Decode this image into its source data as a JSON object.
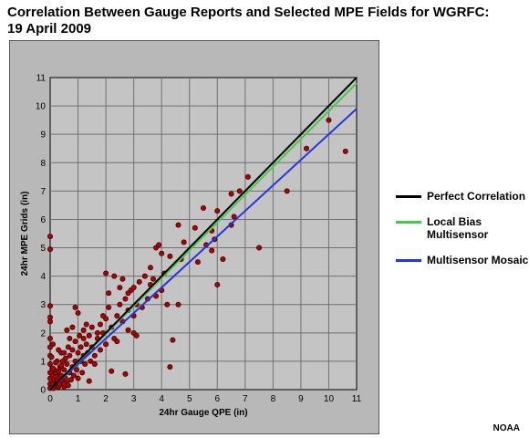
{
  "title_line1": "Correlation Between Gauge Reports and Selected MPE Fields for WGRFC:",
  "title_line2": "19 April 2009",
  "credit": "NOAA",
  "chart_data": {
    "type": "scatter",
    "xlabel": "24hr Gauge QPE (in)",
    "ylabel": "24hr MPE Grids (in)",
    "xlim": [
      0,
      11
    ],
    "ylim": [
      0,
      11
    ],
    "xticks": [
      "0",
      "1",
      "2",
      "3",
      "4",
      "5",
      "6",
      "7",
      "8",
      "9",
      "10",
      "11"
    ],
    "yticks": [
      "0",
      "1",
      "2",
      "3",
      "4",
      "5",
      "6",
      "7",
      "8",
      "9",
      "10",
      "11"
    ],
    "grid": true,
    "legend_position": "right",
    "series": [
      {
        "name": "Perfect Correlation",
        "type": "line",
        "color": "#000000",
        "x": [
          0,
          11
        ],
        "y": [
          0,
          11
        ]
      },
      {
        "name": "Local Bias Multisensor",
        "type": "line",
        "color": "#44cc44",
        "x": [
          0,
          11
        ],
        "y": [
          0,
          10.8
        ]
      },
      {
        "name": "Multisensor Mosaic",
        "type": "line",
        "color": "#1f35e0",
        "x": [
          0,
          11
        ],
        "y": [
          0,
          9.9
        ]
      }
    ],
    "points": {
      "color": "#b30000",
      "data": [
        [
          0.0,
          5.4
        ],
        [
          0.0,
          4.95
        ],
        [
          0.0,
          2.95
        ],
        [
          0.0,
          2.55
        ],
        [
          0.0,
          2.4
        ],
        [
          0.0,
          1.8
        ],
        [
          0.0,
          1.5
        ],
        [
          0.0,
          1.2
        ],
        [
          0.0,
          0.9
        ],
        [
          0.0,
          0.6
        ],
        [
          0.0,
          0.4
        ],
        [
          0.0,
          0.2
        ],
        [
          0.0,
          0.05
        ],
        [
          0.05,
          0.3
        ],
        [
          0.08,
          0.1
        ],
        [
          0.1,
          0.5
        ],
        [
          0.1,
          0.2
        ],
        [
          0.12,
          0.05
        ],
        [
          0.15,
          0.35
        ],
        [
          0.2,
          0.15
        ],
        [
          0.2,
          0.6
        ],
        [
          0.25,
          0.3
        ],
        [
          0.25,
          1.0
        ],
        [
          0.3,
          0.1
        ],
        [
          0.3,
          0.45
        ],
        [
          0.35,
          0.2
        ],
        [
          0.35,
          0.8
        ],
        [
          0.4,
          0.5
        ],
        [
          0.4,
          1.3
        ],
        [
          0.45,
          0.3
        ],
        [
          0.5,
          0.7
        ],
        [
          0.5,
          0.1
        ],
        [
          0.55,
          1.1
        ],
        [
          0.55,
          0.4
        ],
        [
          0.6,
          0.9
        ],
        [
          0.6,
          0.25
        ],
        [
          0.65,
          1.5
        ],
        [
          0.7,
          0.6
        ],
        [
          0.7,
          1.2
        ],
        [
          0.75,
          0.35
        ],
        [
          0.8,
          0.8
        ],
        [
          0.8,
          1.4
        ],
        [
          0.85,
          0.5
        ],
        [
          0.9,
          1.0
        ],
        [
          0.9,
          1.7
        ],
        [
          0.95,
          0.7
        ],
        [
          1.0,
          1.3
        ],
        [
          1.0,
          0.4
        ],
        [
          1.05,
          1.9
        ],
        [
          1.1,
          1.0
        ],
        [
          1.1,
          1.5
        ],
        [
          1.15,
          0.6
        ],
        [
          1.2,
          1.2
        ],
        [
          1.2,
          2.1
        ],
        [
          1.25,
          0.9
        ],
        [
          1.3,
          1.6
        ],
        [
          1.35,
          1.3
        ],
        [
          1.4,
          1.9
        ],
        [
          1.45,
          1.0
        ],
        [
          1.5,
          1.5
        ],
        [
          1.5,
          2.2
        ],
        [
          1.6,
          1.2
        ],
        [
          1.7,
          1.8
        ],
        [
          1.8,
          2.3
        ],
        [
          1.8,
          1.4
        ],
        [
          1.9,
          2.0
        ],
        [
          2.0,
          2.5
        ],
        [
          2.0,
          1.6
        ],
        [
          2.1,
          2.9
        ],
        [
          2.2,
          2.2
        ],
        [
          2.3,
          1.8
        ],
        [
          2.4,
          2.6
        ],
        [
          2.5,
          3.0
        ],
        [
          2.6,
          2.4
        ],
        [
          2.7,
          3.2
        ],
        [
          2.8,
          2.8
        ],
        [
          2.9,
          3.5
        ],
        [
          3.0,
          2.6
        ],
        [
          3.1,
          3.0
        ],
        [
          0.9,
          2.9
        ],
        [
          1.0,
          2.7
        ],
        [
          0.8,
          2.2
        ],
        [
          0.6,
          2.1
        ],
        [
          0.5,
          1.3
        ],
        [
          0.3,
          1.4
        ],
        [
          2.0,
          4.1
        ],
        [
          2.3,
          4.0
        ],
        [
          2.5,
          3.6
        ],
        [
          2.1,
          3.4
        ],
        [
          2.6,
          3.9
        ],
        [
          2.8,
          3.4
        ],
        [
          3.0,
          3.6
        ],
        [
          3.2,
          3.8
        ],
        [
          3.3,
          2.9
        ],
        [
          3.5,
          3.2
        ],
        [
          3.6,
          3.7
        ],
        [
          3.7,
          3.9
        ],
        [
          3.0,
          2.0
        ],
        [
          2.8,
          2.1
        ],
        [
          2.4,
          1.7
        ],
        [
          3.1,
          1.9
        ],
        [
          2.2,
          0.65
        ],
        [
          2.7,
          0.55
        ],
        [
          1.6,
          0.9
        ],
        [
          1.4,
          0.3
        ],
        [
          0.5,
          0.2
        ],
        [
          0.2,
          0.45
        ],
        [
          0.15,
          0.7
        ],
        [
          0.4,
          0.85
        ],
        [
          3.8,
          5.0
        ],
        [
          3.9,
          5.1
        ],
        [
          4.0,
          4.8
        ],
        [
          4.2,
          3.0
        ],
        [
          4.3,
          4.7
        ],
        [
          4.6,
          5.8
        ],
        [
          4.7,
          4.6
        ],
        [
          4.8,
          5.2
        ],
        [
          4.4,
          1.75
        ],
        [
          4.3,
          0.8
        ],
        [
          4.6,
          3.0
        ],
        [
          4.0,
          3.5
        ],
        [
          3.8,
          3.3
        ],
        [
          4.1,
          4.1
        ],
        [
          5.3,
          4.5
        ],
        [
          5.5,
          6.4
        ],
        [
          5.6,
          5.1
        ],
        [
          5.8,
          4.9
        ],
        [
          5.9,
          5.3
        ],
        [
          6.0,
          6.3
        ],
        [
          6.0,
          3.7
        ],
        [
          6.2,
          4.6
        ],
        [
          6.5,
          6.9
        ],
        [
          6.5,
          5.8
        ],
        [
          6.6,
          6.1
        ],
        [
          6.8,
          7.0
        ],
        [
          7.1,
          7.5
        ],
        [
          7.5,
          5.0
        ],
        [
          8.5,
          7.0
        ],
        [
          9.2,
          8.5
        ],
        [
          10.0,
          9.5
        ],
        [
          10.6,
          8.4
        ],
        [
          5.8,
          5.6
        ],
        [
          5.2,
          5.7
        ],
        [
          3.6,
          4.3
        ],
        [
          3.4,
          4.0
        ],
        [
          1.3,
          2.3
        ],
        [
          1.2,
          1.8
        ],
        [
          1.7,
          2.0
        ],
        [
          1.9,
          2.6
        ],
        [
          0.7,
          1.8
        ],
        [
          0.65,
          0.15
        ],
        [
          0.45,
          1.0
        ],
        [
          0.3,
          0.65
        ],
        [
          0.2,
          0.95
        ],
        [
          0.1,
          0.75
        ],
        [
          0.05,
          1.15
        ],
        [
          0.1,
          1.6
        ]
      ]
    }
  },
  "legend": [
    {
      "label": "Perfect Correlation",
      "color": "#000000"
    },
    {
      "label": "Local Bias Multisensor",
      "color": "#44cc44"
    },
    {
      "label": "Multisensor Mosaic",
      "color": "#1f35e0"
    }
  ]
}
